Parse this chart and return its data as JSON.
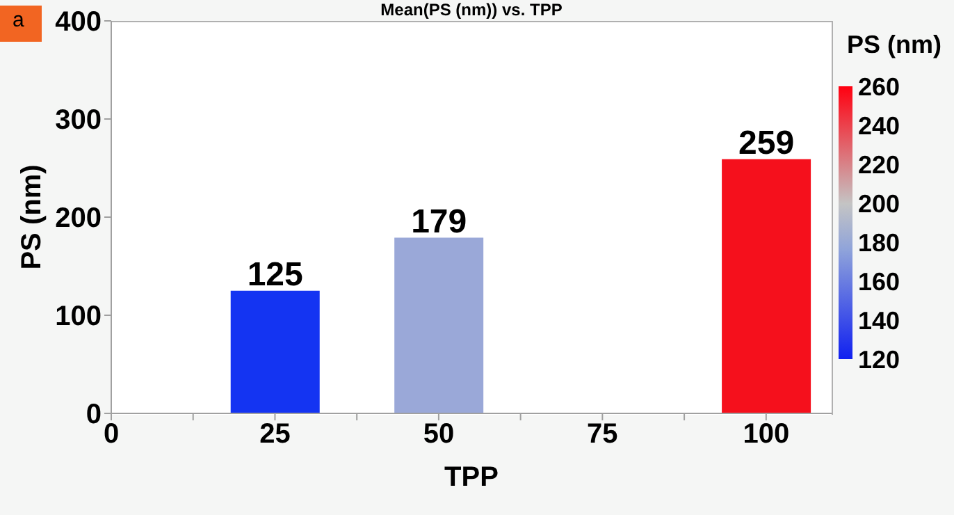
{
  "chart_data": {
    "type": "bar",
    "title": "Mean(PS (nm)) vs. TPP",
    "xlabel": "TPP",
    "ylabel": "PS (nm)",
    "clabel": "PS (nm)",
    "annotations": [
      "a"
    ],
    "x": [
      25,
      50,
      100
    ],
    "values": [
      125,
      179,
      259
    ],
    "colors": [
      "#1434f2",
      "#9aa8d8",
      "#f5101c"
    ],
    "xlim": [
      0,
      110
    ],
    "xticks": [
      0,
      {
        "value": 12.5,
        "label": null
      },
      25,
      {
        "value": 37.5,
        "label": null
      },
      50,
      {
        "value": 62.5,
        "label": null
      },
      75,
      {
        "value": 87.5,
        "label": null
      },
      100
    ],
    "ylim": [
      0,
      400
    ],
    "yticks": [
      0,
      100,
      200,
      300,
      400
    ],
    "clim": [
      120,
      260
    ],
    "cticks": [
      120,
      140,
      160,
      180,
      200,
      220,
      240,
      260
    ],
    "data_labels": true,
    "grid": false,
    "legend": false
  }
}
